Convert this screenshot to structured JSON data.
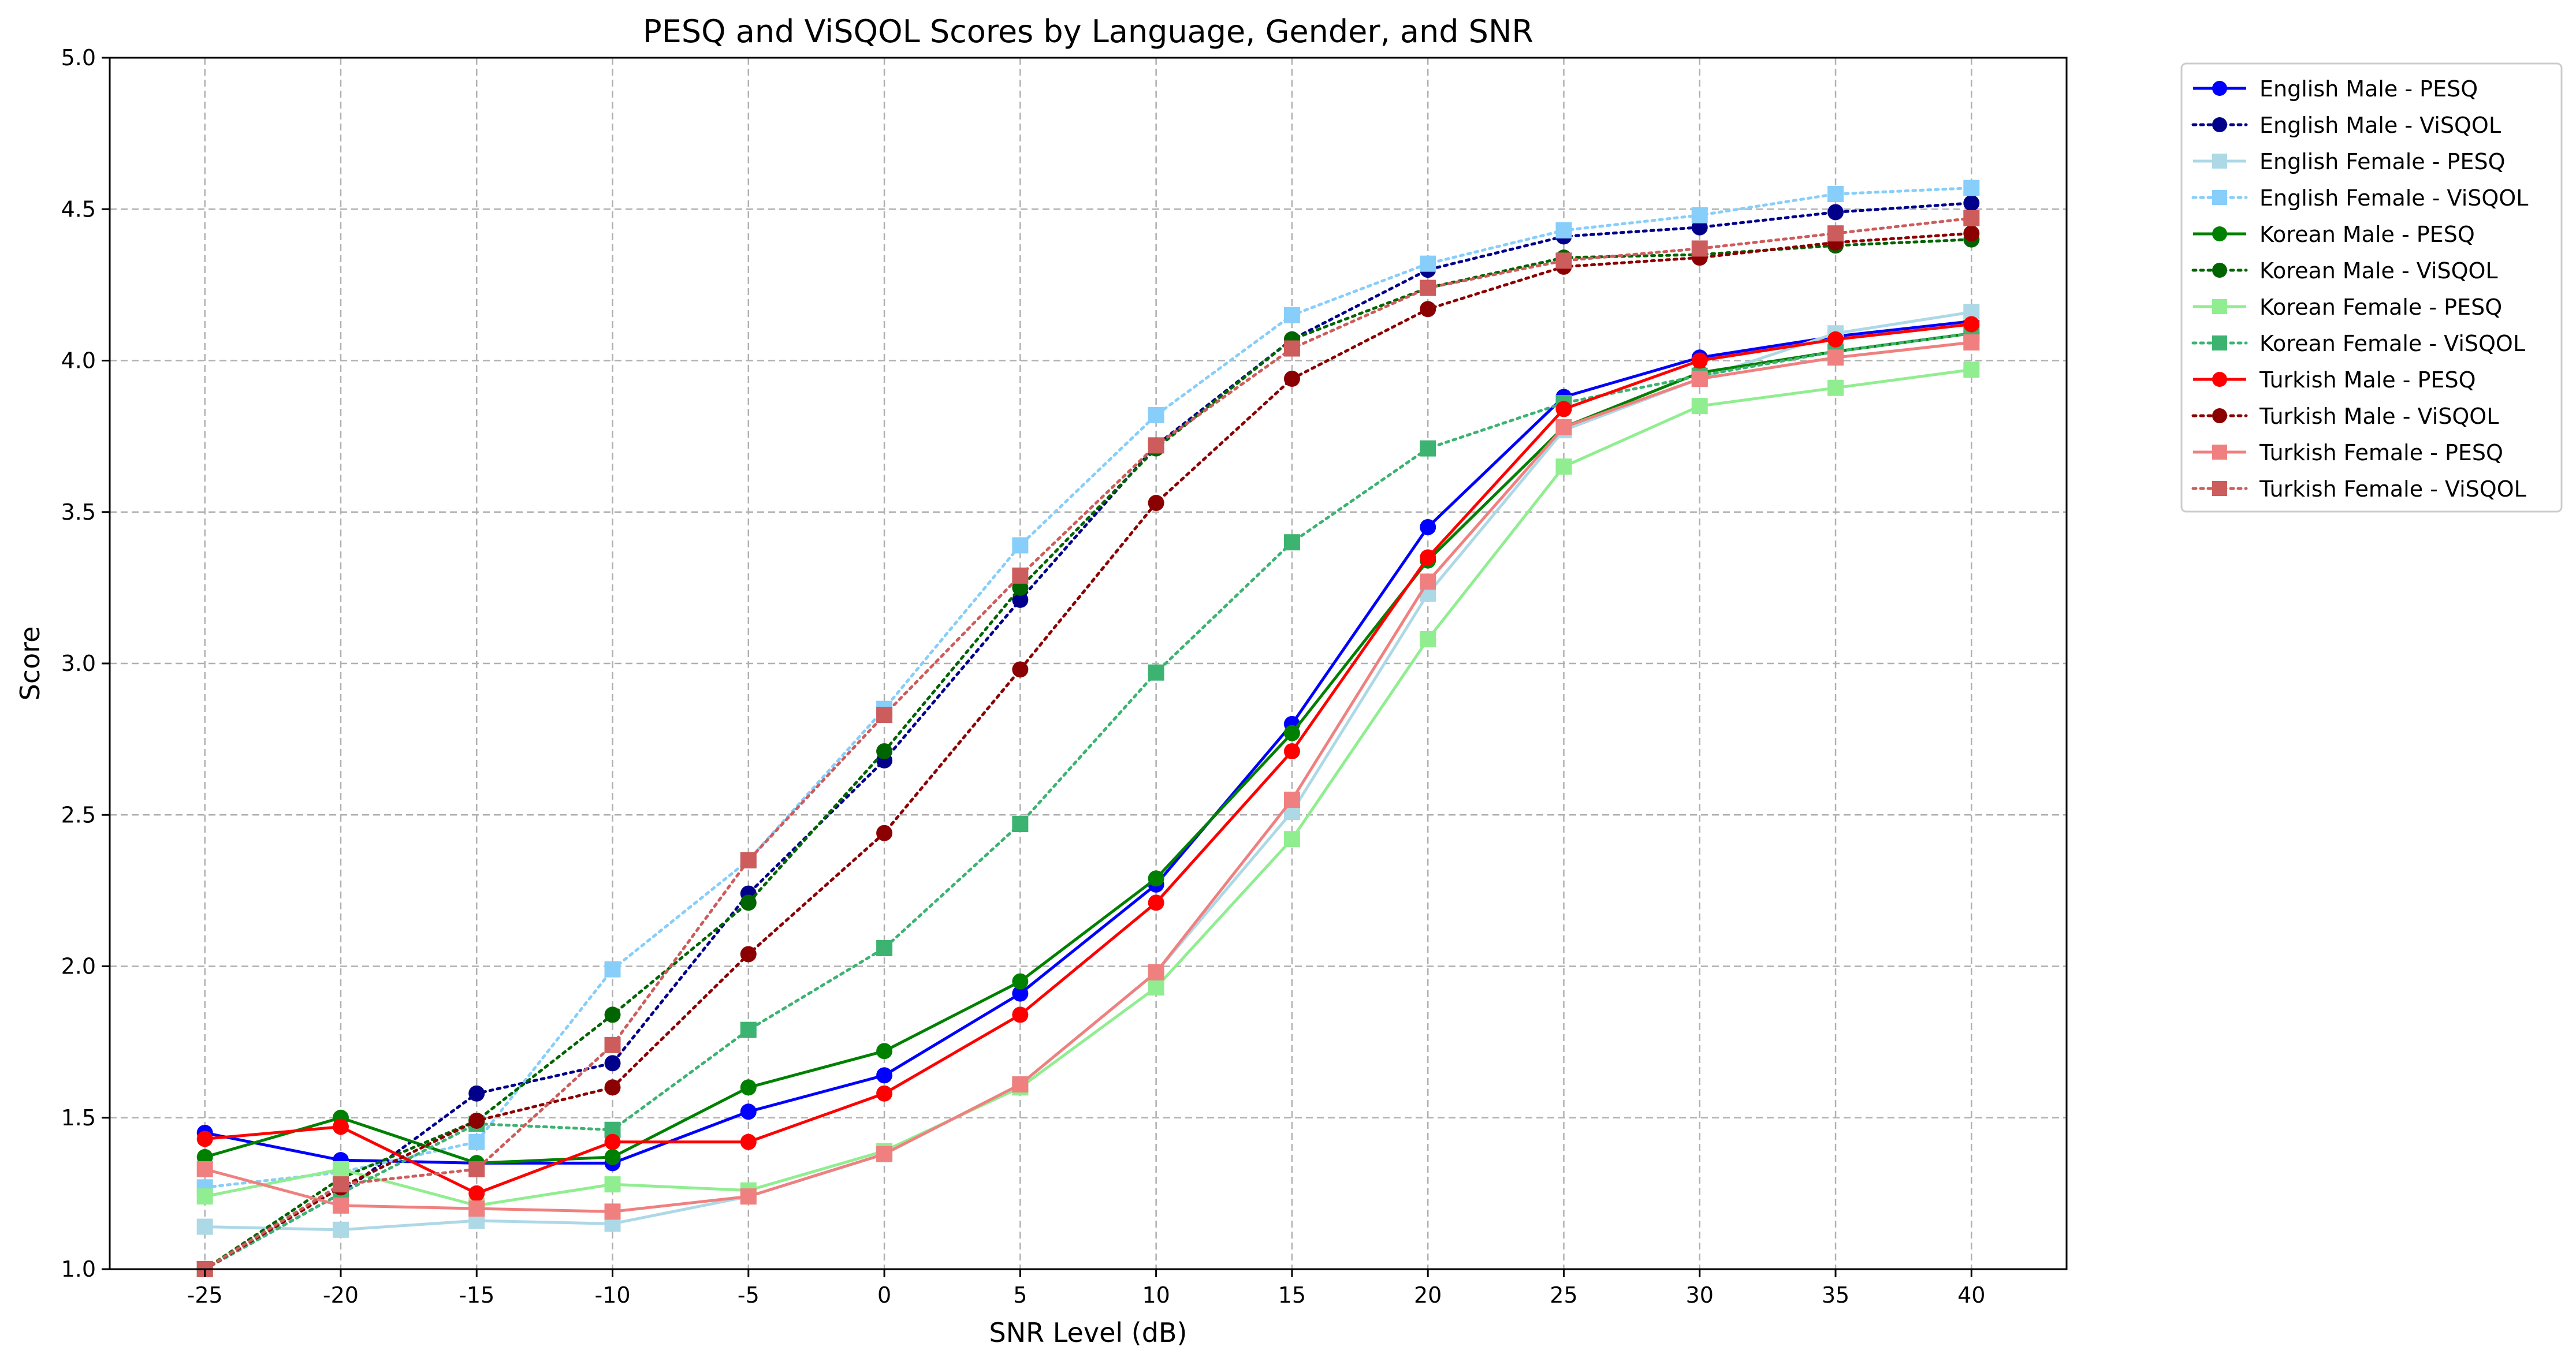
{
  "chart_data": {
    "type": "line",
    "title": "PESQ and ViSQOL Scores by Language, Gender, and SNR",
    "xlabel": "SNR Level (dB)",
    "ylabel": "Score",
    "x": [
      -25,
      -20,
      -15,
      -10,
      -5,
      0,
      5,
      10,
      15,
      20,
      25,
      30,
      35,
      40
    ],
    "x_tick_labels": [
      "-25",
      "-20",
      "-15",
      "-10",
      "-5",
      "0",
      "5",
      "10",
      "15",
      "20",
      "25",
      "30",
      "35",
      "40"
    ],
    "ylim": [
      1.0,
      5.0
    ],
    "y_ticks": [
      1.0,
      1.5,
      2.0,
      2.5,
      3.0,
      3.5,
      4.0,
      4.5,
      5.0
    ],
    "y_tick_labels": [
      "1.0",
      "1.5",
      "2.0",
      "2.5",
      "3.0",
      "3.5",
      "4.0",
      "4.5",
      "5.0"
    ],
    "grid": true,
    "legend_position": "outside-right-top",
    "series": [
      {
        "name": "English Male - PESQ",
        "color": "#0000ff",
        "dash": "solid",
        "marker": "circle",
        "values": [
          1.45,
          1.36,
          1.35,
          1.35,
          1.52,
          1.64,
          1.91,
          2.27,
          2.8,
          3.45,
          3.88,
          4.01,
          4.08,
          4.13
        ]
      },
      {
        "name": "English Male - ViSQOL",
        "color": "#00008b",
        "dash": "dotted",
        "marker": "circle",
        "values": [
          1.0,
          1.25,
          1.58,
          1.68,
          2.24,
          2.68,
          3.21,
          3.72,
          4.07,
          4.3,
          4.41,
          4.44,
          4.49,
          4.52
        ]
      },
      {
        "name": "English Female - PESQ",
        "color": "#add8e6",
        "dash": "solid",
        "marker": "square",
        "values": [
          1.14,
          1.13,
          1.16,
          1.15,
          1.24,
          1.38,
          1.61,
          1.98,
          2.51,
          3.23,
          3.77,
          3.94,
          4.09,
          4.16
        ]
      },
      {
        "name": "English Female - ViSQOL",
        "color": "#87cefa",
        "dash": "dotted",
        "marker": "square",
        "values": [
          1.27,
          1.32,
          1.42,
          1.99,
          2.35,
          2.85,
          3.39,
          3.82,
          4.15,
          4.32,
          4.43,
          4.48,
          4.55,
          4.57
        ]
      },
      {
        "name": "Korean Male - PESQ",
        "color": "#008000",
        "dash": "solid",
        "marker": "circle",
        "values": [
          1.37,
          1.5,
          1.35,
          1.37,
          1.6,
          1.72,
          1.95,
          2.29,
          2.77,
          3.34,
          3.78,
          3.96,
          4.03,
          4.09
        ]
      },
      {
        "name": "Korean Male - ViSQOL",
        "color": "#006400",
        "dash": "dotted",
        "marker": "circle",
        "values": [
          1.0,
          1.3,
          1.49,
          1.84,
          2.21,
          2.71,
          3.25,
          3.71,
          4.07,
          4.24,
          4.34,
          4.35,
          4.38,
          4.4
        ]
      },
      {
        "name": "Korean Female - PESQ",
        "color": "#90ee90",
        "dash": "solid",
        "marker": "square",
        "values": [
          1.24,
          1.33,
          1.21,
          1.28,
          1.26,
          1.39,
          1.6,
          1.93,
          2.42,
          3.08,
          3.65,
          3.85,
          3.91,
          3.97
        ]
      },
      {
        "name": "Korean Female - ViSQOL",
        "color": "#3cb371",
        "dash": "dotted",
        "marker": "square",
        "values": [
          1.0,
          1.25,
          1.48,
          1.46,
          1.79,
          2.06,
          2.47,
          2.97,
          3.4,
          3.71,
          3.86,
          3.95,
          4.03,
          4.09
        ]
      },
      {
        "name": "Turkish Male - PESQ",
        "color": "#ff0000",
        "dash": "solid",
        "marker": "circle",
        "values": [
          1.43,
          1.47,
          1.25,
          1.42,
          1.42,
          1.58,
          1.84,
          2.21,
          2.71,
          3.35,
          3.84,
          4.0,
          4.07,
          4.12
        ]
      },
      {
        "name": "Turkish Male - ViSQOL",
        "color": "#8b0000",
        "dash": "dotted",
        "marker": "circle",
        "values": [
          1.0,
          1.27,
          1.49,
          1.6,
          2.04,
          2.44,
          2.98,
          3.53,
          3.94,
          4.17,
          4.31,
          4.34,
          4.39,
          4.42
        ]
      },
      {
        "name": "Turkish Female - PESQ",
        "color": "#f08080",
        "dash": "solid",
        "marker": "square",
        "values": [
          1.33,
          1.21,
          1.2,
          1.19,
          1.24,
          1.38,
          1.61,
          1.98,
          2.55,
          3.27,
          3.78,
          3.94,
          4.01,
          4.06
        ]
      },
      {
        "name": "Turkish Female - ViSQOL",
        "color": "#cd5c5c",
        "dash": "dotted",
        "marker": "square",
        "values": [
          1.0,
          1.28,
          1.33,
          1.74,
          2.35,
          2.83,
          3.29,
          3.72,
          4.04,
          4.24,
          4.33,
          4.37,
          4.42,
          4.47
        ]
      }
    ]
  }
}
